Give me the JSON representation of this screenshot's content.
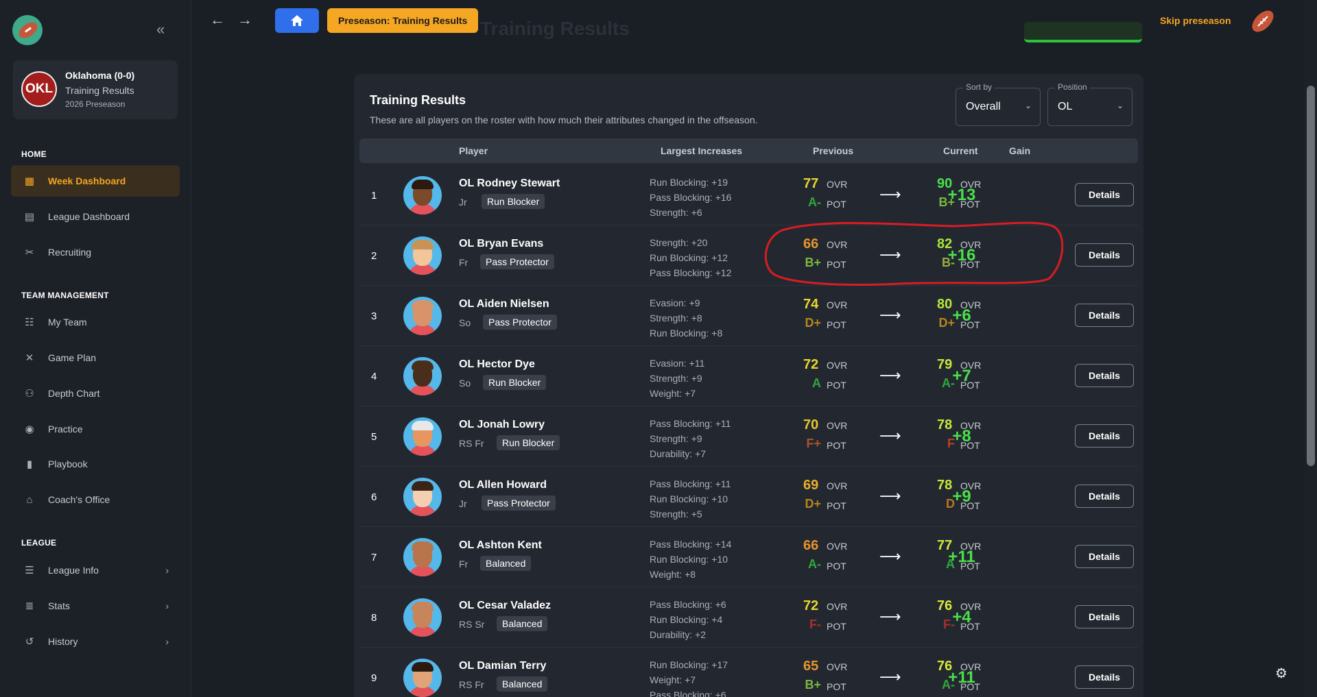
{
  "team": {
    "name": "Oklahoma (0-0)",
    "page": "Training Results",
    "season": "2026 Preseason",
    "abbr": "OKL"
  },
  "nav": {
    "sections": [
      {
        "title": "HOME",
        "items": [
          {
            "label": "Week Dashboard",
            "icon": "dashboard-icon",
            "active": true
          },
          {
            "label": "League Dashboard",
            "icon": "table-icon"
          },
          {
            "label": "Recruiting",
            "icon": "tools-icon"
          }
        ]
      },
      {
        "title": "TEAM MANAGEMENT",
        "items": [
          {
            "label": "My Team",
            "icon": "team-icon"
          },
          {
            "label": "Game Plan",
            "icon": "gameplan-icon"
          },
          {
            "label": "Depth Chart",
            "icon": "depth-chart-icon"
          },
          {
            "label": "Practice",
            "icon": "whistle-icon"
          },
          {
            "label": "Playbook",
            "icon": "book-icon"
          },
          {
            "label": "Coach's Office",
            "icon": "desk-lamp-icon"
          }
        ]
      },
      {
        "title": "LEAGUE",
        "items": [
          {
            "label": "League Info",
            "icon": "layers-icon"
          },
          {
            "label": "Stats",
            "icon": "database-icon"
          },
          {
            "label": "History",
            "icon": "history-icon"
          }
        ]
      }
    ]
  },
  "topbar": {
    "breadcrumb": "Preseason: Training Results",
    "ghost_title": "Training Results",
    "skip": "Skip preseason"
  },
  "card": {
    "title": "Training Results",
    "description": "These are all players on the roster with how much their attributes changed in the offseason.",
    "sort": {
      "label": "Sort by",
      "value": "Overall"
    },
    "position": {
      "label": "Position",
      "value": "OL"
    },
    "headers": {
      "player": "Player",
      "increases": "Largest Increases",
      "previous": "Previous",
      "current": "Current",
      "gain": "Gain"
    },
    "ovr_label": "OVR",
    "pot_label": "POT",
    "details_label": "Details"
  },
  "rows": [
    {
      "rank": "1",
      "name": "OL Rodney Stewart",
      "year": "Jr",
      "archetype": "Run Blocker",
      "increases": [
        "Run Blocking: +19",
        "Pass Blocking: +16",
        "Strength: +6"
      ],
      "prev_ovr": "77",
      "prev_pot": "A-",
      "cur_ovr": "90",
      "cur_pot": "B+",
      "gain": "+13",
      "prev_ovr_color": "#e8d72c",
      "prev_pot_color": "#2fa83a",
      "cur_ovr_color": "#4ae04a",
      "cur_pot_color": "#7bb83a",
      "skin": "#7a4a2a",
      "hair": "#2a1a10"
    },
    {
      "rank": "2",
      "name": "OL Bryan Evans",
      "year": "Fr",
      "archetype": "Pass Protector",
      "increases": [
        "Strength: +20",
        "Run Blocking: +12",
        "Pass Blocking: +12"
      ],
      "prev_ovr": "66",
      "prev_pot": "B+",
      "cur_ovr": "82",
      "cur_pot": "B-",
      "gain": "+16",
      "prev_ovr_color": "#e8962c",
      "prev_pot_color": "#7bb83a",
      "cur_ovr_color": "#a9e83a",
      "cur_pot_color": "#9cac3a",
      "skin": "#f2c59a",
      "hair": "#c89456"
    },
    {
      "rank": "3",
      "name": "OL Aiden Nielsen",
      "year": "So",
      "archetype": "Pass Protector",
      "increases": [
        "Evasion: +9",
        "Strength: +8",
        "Run Blocking: +8"
      ],
      "prev_ovr": "74",
      "prev_pot": "D+",
      "cur_ovr": "80",
      "cur_pot": "D+",
      "gain": "+6",
      "prev_ovr_color": "#e8d72c",
      "prev_pot_color": "#b8861a",
      "cur_ovr_color": "#b8e83a",
      "cur_pot_color": "#b8861a",
      "skin": "#d89468",
      "hair": "#d89468"
    },
    {
      "rank": "4",
      "name": "OL Hector Dye",
      "year": "So",
      "archetype": "Run Blocker",
      "increases": [
        "Evasion: +11",
        "Strength: +9",
        "Weight: +7"
      ],
      "prev_ovr": "72",
      "prev_pot": "A",
      "cur_ovr": "79",
      "cur_pot": "A-",
      "gain": "+7",
      "prev_ovr_color": "#e8d72c",
      "prev_pot_color": "#2fa83a",
      "cur_ovr_color": "#c8e83a",
      "cur_pot_color": "#2fa83a",
      "skin": "#4a2e1c",
      "hair": "#4a2e1c"
    },
    {
      "rank": "5",
      "name": "OL Jonah Lowry",
      "year": "RS Fr",
      "archetype": "Run Blocker",
      "increases": [
        "Pass Blocking: +11",
        "Strength: +9",
        "Durability: +7"
      ],
      "prev_ovr": "70",
      "prev_pot": "F+",
      "cur_ovr": "78",
      "cur_pot": "F",
      "gain": "+8",
      "prev_ovr_color": "#e8c82c",
      "prev_pot_color": "#a8542a",
      "cur_ovr_color": "#c8e83a",
      "cur_pot_color": "#b8402a",
      "skin": "#e89660",
      "hair": "#e8e8e8"
    },
    {
      "rank": "6",
      "name": "OL Allen Howard",
      "year": "Jr",
      "archetype": "Pass Protector",
      "increases": [
        "Pass Blocking: +11",
        "Run Blocking: +10",
        "Strength: +5"
      ],
      "prev_ovr": "69",
      "prev_pot": "D+",
      "cur_ovr": "78",
      "cur_pot": "D",
      "gain": "+9",
      "prev_ovr_color": "#e8b02c",
      "prev_pot_color": "#b8861a",
      "cur_ovr_color": "#c8e83a",
      "cur_pot_color": "#b8761a",
      "skin": "#f5d0b0",
      "hair": "#3a2416"
    },
    {
      "rank": "7",
      "name": "OL Ashton Kent",
      "year": "Fr",
      "archetype": "Balanced",
      "increases": [
        "Pass Blocking: +14",
        "Run Blocking: +10",
        "Weight: +8"
      ],
      "prev_ovr": "66",
      "prev_pot": "A-",
      "cur_ovr": "77",
      "cur_pot": "A",
      "gain": "+11",
      "prev_ovr_color": "#e8962c",
      "prev_pot_color": "#2fa83a",
      "cur_ovr_color": "#d2e83a",
      "cur_pot_color": "#2fa83a",
      "skin": "#b8744a",
      "hair": "#b8744a"
    },
    {
      "rank": "8",
      "name": "OL Cesar Valadez",
      "year": "RS Sr",
      "archetype": "Balanced",
      "increases": [
        "Pass Blocking: +6",
        "Run Blocking: +4",
        "Durability: +2"
      ],
      "prev_ovr": "72",
      "prev_pot": "F-",
      "cur_ovr": "76",
      "cur_pot": "F-",
      "gain": "+4",
      "prev_ovr_color": "#e8d72c",
      "prev_pot_color": "#a8302a",
      "cur_ovr_color": "#d8e83a",
      "cur_pot_color": "#a8302a",
      "skin": "#c8845a",
      "hair": "#c8845a"
    },
    {
      "rank": "9",
      "name": "OL Damian Terry",
      "year": "RS Fr",
      "archetype": "Balanced",
      "increases": [
        "Run Blocking: +17",
        "Weight: +7",
        "Pass Blocking: +6"
      ],
      "prev_ovr": "65",
      "prev_pot": "B+",
      "cur_ovr": "76",
      "cur_pot": "A-",
      "gain": "+11",
      "prev_ovr_color": "#e8962c",
      "prev_pot_color": "#7bb83a",
      "cur_ovr_color": "#d8e83a",
      "cur_pot_color": "#2fa83a",
      "skin": "#e0a478",
      "hair": "#2a1a10"
    }
  ]
}
